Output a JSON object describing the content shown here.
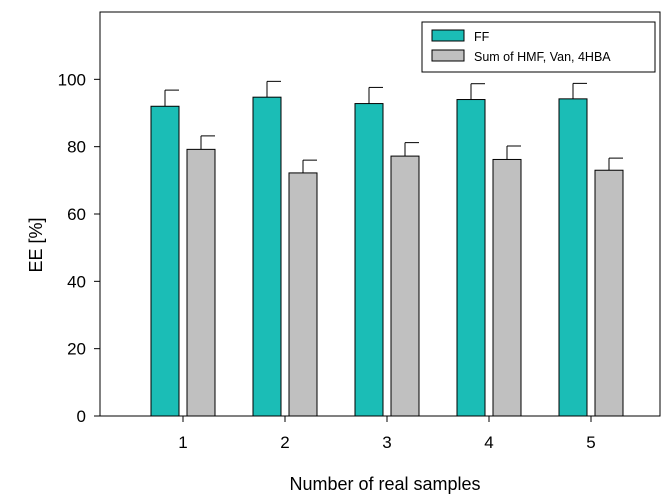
{
  "chart_data": {
    "type": "bar",
    "title": "",
    "xlabel": "Number of real samples",
    "ylabel": "EE [%]",
    "ylim": [
      0,
      120
    ],
    "yticks": [
      0,
      20,
      40,
      60,
      80,
      100
    ],
    "categories": [
      "1",
      "2",
      "3",
      "4",
      "5"
    ],
    "series": [
      {
        "name": "FF",
        "color": "#1bbdb6",
        "values": [
          92,
          94.7,
          92.8,
          94,
          94.2
        ],
        "errors": [
          4.8,
          4.7,
          4.8,
          4.7,
          4.6
        ]
      },
      {
        "name": "Sum of HMF, Van, 4HBA",
        "color": "#c0c0c0",
        "values": [
          79.2,
          72.2,
          77.2,
          76.2,
          73
        ],
        "errors": [
          4,
          3.8,
          4,
          4,
          3.6
        ]
      }
    ],
    "grid": false,
    "legend_position": "top-right"
  }
}
